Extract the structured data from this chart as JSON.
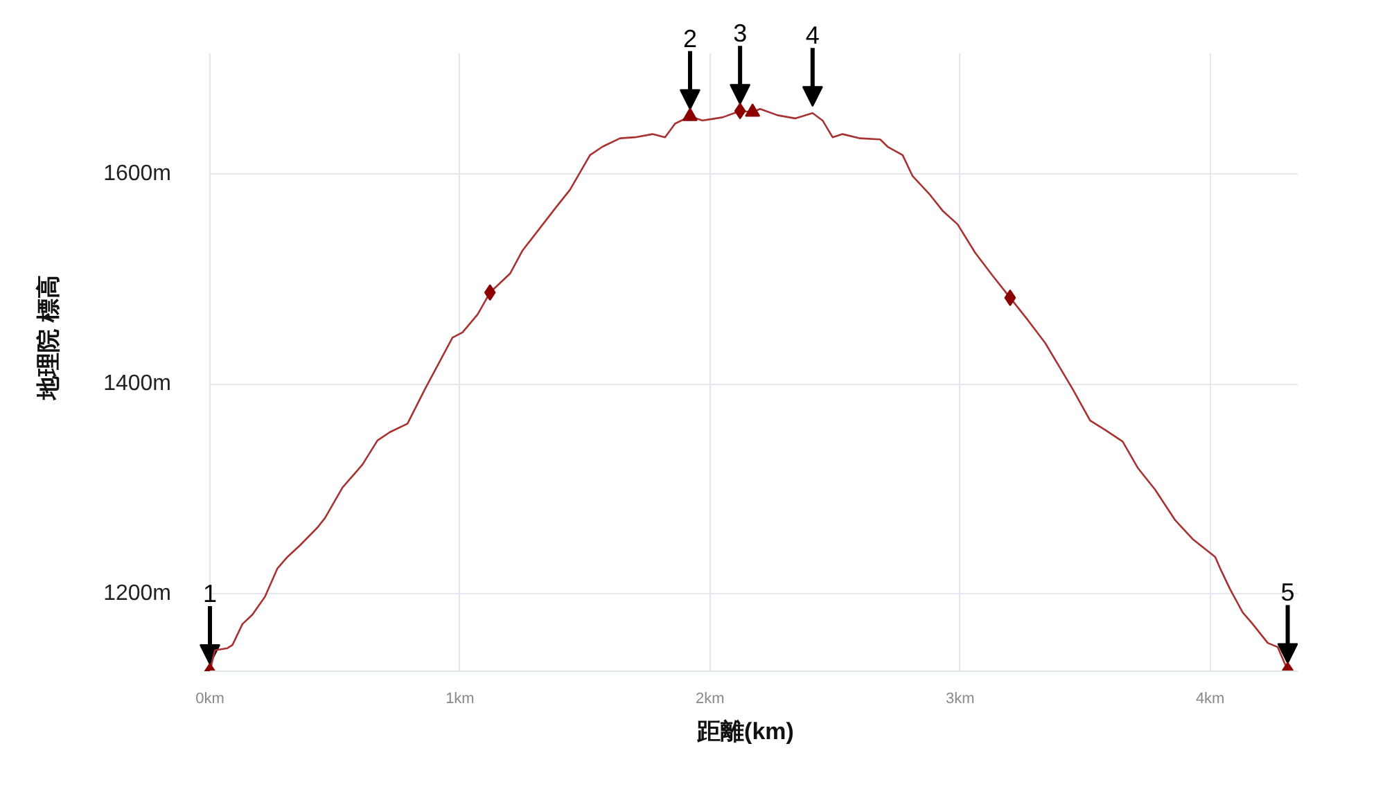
{
  "chart_data": {
    "type": "line",
    "xlabel": "距離(km)",
    "ylabel": "地理院 標高",
    "xlim": [
      0,
      4.35
    ],
    "ylim": [
      1126,
      1715
    ],
    "xticks": [
      {
        "value": 0,
        "label": "0km"
      },
      {
        "value": 1,
        "label": "1km"
      },
      {
        "value": 2,
        "label": "2km"
      },
      {
        "value": 3,
        "label": "3km"
      },
      {
        "value": 4,
        "label": "4km"
      }
    ],
    "yticks": [
      {
        "value": 1200,
        "label": "1200m"
      },
      {
        "value": 1400,
        "label": "1400m"
      },
      {
        "value": 1600,
        "label": "1600m"
      }
    ],
    "grid": true,
    "series": [
      {
        "color": "#a83232",
        "marker": "none",
        "line_style": "solid",
        "x": [
          0,
          0.02,
          0.07,
          0.09,
          0.13,
          0.17,
          0.22,
          0.27,
          0.31,
          0.36,
          0.43,
          0.46,
          0.53,
          0.61,
          0.67,
          0.72,
          0.79,
          0.86,
          0.97,
          1.01,
          1.07,
          1.12,
          1.2,
          1.25,
          1.38,
          1.44,
          1.52,
          1.57,
          1.64,
          1.7,
          1.77,
          1.82,
          1.86,
          1.92,
          1.97,
          2.05,
          2.12,
          2.17,
          2.2,
          2.27,
          2.34,
          2.41,
          2.45,
          2.49,
          2.53,
          2.6,
          2.68,
          2.71,
          2.77,
          2.81,
          2.88,
          2.93,
          2.99,
          3.06,
          3.13,
          3.2,
          3.27,
          3.34,
          3.45,
          3.52,
          3.58,
          3.65,
          3.71,
          3.78,
          3.86,
          3.93,
          4.02,
          4.04,
          4.08,
          4.13,
          4.17,
          4.23,
          4.27,
          4.31
        ],
        "values": [
          1126,
          1146,
          1148,
          1151,
          1171,
          1180,
          1197,
          1224,
          1235,
          1246,
          1263,
          1272,
          1301,
          1323,
          1346,
          1354,
          1362,
          1395,
          1444,
          1449,
          1466,
          1487,
          1505,
          1527,
          1567,
          1585,
          1618,
          1626,
          1634,
          1635,
          1638,
          1635,
          1648,
          1655,
          1651,
          1654,
          1660,
          1659,
          1662,
          1656,
          1653,
          1658,
          1651,
          1635,
          1638,
          1634,
          1633,
          1626,
          1618,
          1598,
          1580,
          1565,
          1552,
          1525,
          1503,
          1482,
          1461,
          1439,
          1395,
          1365,
          1356,
          1345,
          1320,
          1299,
          1270,
          1252,
          1235,
          1224,
          1204,
          1182,
          1171,
          1153,
          1149,
          1127
        ]
      },
      {
        "type": "scatter",
        "color": "#8b0000",
        "marker": "diamond",
        "x": [
          0,
          1.12,
          2.12,
          3.2,
          4.31
        ],
        "values": [
          1126,
          1487,
          1660,
          1482,
          1127
        ]
      },
      {
        "type": "scatter",
        "color": "#8b0000",
        "marker": "triangle",
        "x": [
          1.92,
          2.17
        ],
        "values": [
          1655,
          1659
        ]
      }
    ],
    "annotations": [
      {
        "text": "1",
        "x": 0,
        "y": 1126
      },
      {
        "text": "2",
        "x": 1.92,
        "y": 1655
      },
      {
        "text": "3",
        "x": 2.12,
        "y": 1660
      },
      {
        "text": "4",
        "x": 2.41,
        "y": 1658
      },
      {
        "text": "5",
        "x": 4.31,
        "y": 1127
      }
    ]
  }
}
